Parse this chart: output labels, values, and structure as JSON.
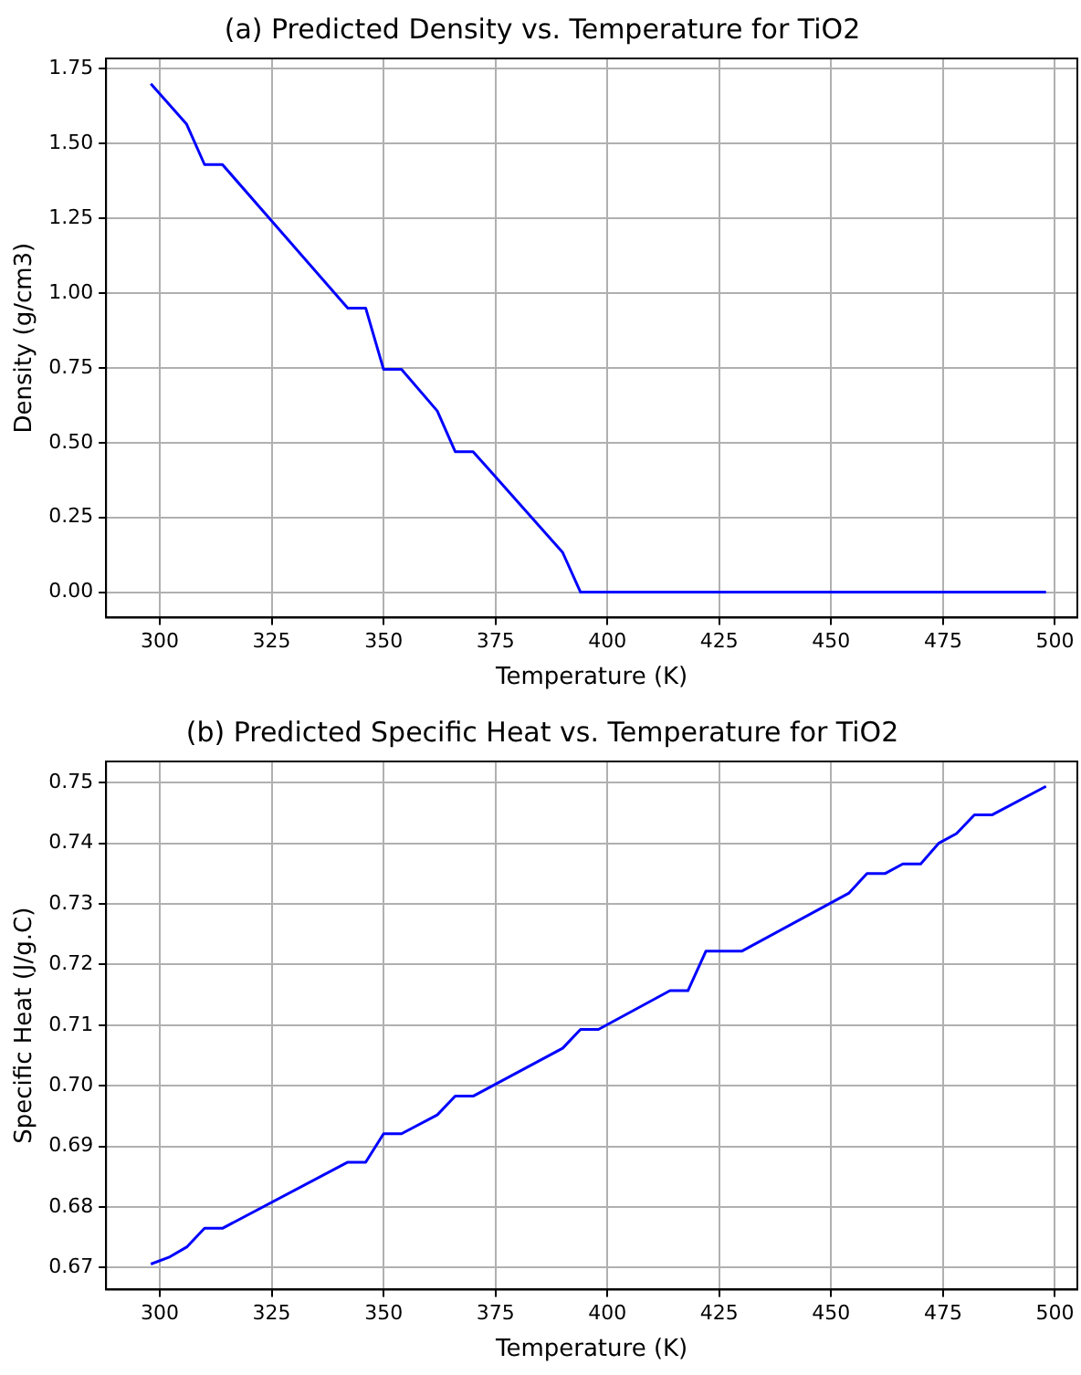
{
  "chart_data": [
    {
      "type": "line",
      "title": "(a) Predicted Density vs. Temperature for TiO2",
      "xlabel": "Temperature (K)",
      "ylabel": "Density (g/cm3)",
      "series": [
        {
          "color": "#0000ff",
          "x": [
            298,
            306,
            310,
            314,
            342,
            346,
            350,
            354,
            362,
            366,
            370,
            390,
            394,
            498
          ],
          "values": [
            1.7,
            1.565,
            1.43,
            1.43,
            0.95,
            0.95,
            0.745,
            0.745,
            0.606,
            0.47,
            0.47,
            0.133,
            0,
            0
          ]
        }
      ],
      "xlim": [
        288,
        505
      ],
      "xticks": [
        300,
        325,
        350,
        375,
        400,
        425,
        450,
        475,
        500
      ],
      "ylim": [
        -0.085,
        1.785
      ],
      "yticks": [
        {
          "value": 0,
          "label": "0.00"
        },
        {
          "value": 0.25,
          "label": "0.25"
        },
        {
          "value": 0.5,
          "label": "0.50"
        },
        {
          "value": 0.75,
          "label": "0.75"
        },
        {
          "value": 1,
          "label": "1.00"
        },
        {
          "value": 1.25,
          "label": "1.25"
        },
        {
          "value": 1.5,
          "label": "1.50"
        },
        {
          "value": 1.75,
          "label": "1.75"
        }
      ],
      "grid": true,
      "legend": false,
      "marker": "none",
      "line_style": "solid"
    },
    {
      "type": "line",
      "title": "(b) Predicted Specific Heat vs. Temperature for TiO2",
      "xlabel": "Temperature (K)",
      "ylabel": "Specific Heat (J/g.C)",
      "series": [
        {
          "color": "#0000ff",
          "x": [
            298,
            302,
            306,
            310,
            314,
            342,
            346,
            350,
            354,
            362,
            366,
            370,
            390,
            394,
            398,
            414,
            418,
            422,
            430,
            454,
            458,
            462,
            466,
            470,
            474,
            478,
            482,
            486,
            498
          ],
          "values": [
            0.6706,
            0.6717,
            0.6734,
            0.6765,
            0.6765,
            0.6874,
            0.6874,
            0.6921,
            0.6921,
            0.6952,
            0.6983,
            0.6983,
            0.7062,
            0.7093,
            0.7093,
            0.7157,
            0.7157,
            0.7222,
            0.7222,
            0.7318,
            0.735,
            0.735,
            0.7366,
            0.7366,
            0.74,
            0.7416,
            0.7447,
            0.7447,
            0.7494
          ]
        }
      ],
      "xlim": [
        288,
        505
      ],
      "xticks": [
        300,
        325,
        350,
        375,
        400,
        425,
        450,
        475,
        500
      ],
      "ylim": [
        0.6664,
        0.7535
      ],
      "yticks": [
        0.67,
        0.68,
        0.69,
        {
          "value": 0.7,
          "label": "0.70"
        },
        0.71,
        0.72,
        0.73,
        0.74,
        {
          "value": 0.75,
          "label": "0.75"
        }
      ],
      "grid": true,
      "legend": false,
      "marker": "none",
      "line_style": "solid"
    }
  ]
}
